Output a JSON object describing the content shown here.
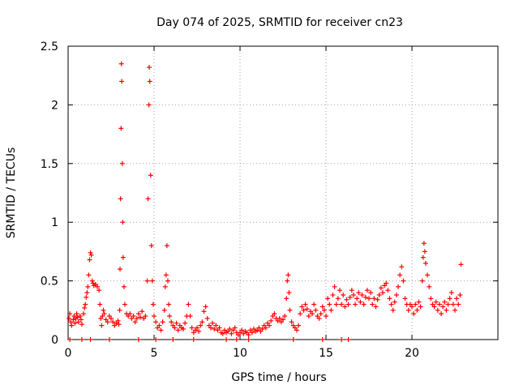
{
  "chart_data": {
    "type": "scatter",
    "title": "Day 074 of 2025, SRMTID for receiver cn23",
    "xlabel": "GPS time / hours",
    "ylabel": "SRMTID / TECUs",
    "xlim": [
      0,
      25
    ],
    "ylim": [
      0,
      2.5
    ],
    "xticks": [
      0,
      5,
      10,
      15,
      20
    ],
    "yticks": [
      0,
      0.5,
      1,
      1.5,
      2,
      2.5
    ],
    "xtick_labels": [
      "0",
      "5",
      "10",
      "15",
      "20"
    ],
    "ytick_labels": [
      "0",
      "0.5",
      "1",
      "1.5",
      "2",
      "2.5"
    ],
    "grid": true,
    "marker": "+",
    "color": "#ff0000",
    "series": [
      {
        "name": "SRMTID",
        "points": [
          [
            0.05,
            0.18
          ],
          [
            0.1,
            0.22
          ],
          [
            0.15,
            0.15
          ],
          [
            0.2,
            0.12
          ],
          [
            0.3,
            0.17
          ],
          [
            0.35,
            0.2
          ],
          [
            0.4,
            0.14
          ],
          [
            0.45,
            0.18
          ],
          [
            0.5,
            0.22
          ],
          [
            0.55,
            0.19
          ],
          [
            0.6,
            0.15
          ],
          [
            0.7,
            0.2
          ],
          [
            0.75,
            0.17
          ],
          [
            0.8,
            0.13
          ],
          [
            0.9,
            0.22
          ],
          [
            0.95,
            0.27
          ],
          [
            1.0,
            0.3
          ],
          [
            1.05,
            0.36
          ],
          [
            1.1,
            0.4
          ],
          [
            1.15,
            0.45
          ],
          [
            1.2,
            0.55
          ],
          [
            1.25,
            0.68
          ],
          [
            1.3,
            0.74
          ],
          [
            1.35,
            0.72
          ],
          [
            1.4,
            0.5
          ],
          [
            1.45,
            0.48
          ],
          [
            1.5,
            0.46
          ],
          [
            1.6,
            0.47
          ],
          [
            1.7,
            0.45
          ],
          [
            1.8,
            0.42
          ],
          [
            1.85,
            0.3
          ],
          [
            1.9,
            0.18
          ],
          [
            1.95,
            0.12
          ],
          [
            2.0,
            0.2
          ],
          [
            2.05,
            0.25
          ],
          [
            2.1,
            0.22
          ],
          [
            2.2,
            0.17
          ],
          [
            2.3,
            0.15
          ],
          [
            2.4,
            0.2
          ],
          [
            2.5,
            0.18
          ],
          [
            2.6,
            0.15
          ],
          [
            2.7,
            0.12
          ],
          [
            2.8,
            0.14
          ],
          [
            2.9,
            0.16
          ],
          [
            2.95,
            0.13
          ],
          [
            3.0,
            0.25
          ],
          [
            3.02,
            0.6
          ],
          [
            3.05,
            1.2
          ],
          [
            3.08,
            1.8
          ],
          [
            3.1,
            2.35
          ],
          [
            3.12,
            2.2
          ],
          [
            3.15,
            1.5
          ],
          [
            3.18,
            1.0
          ],
          [
            3.2,
            0.7
          ],
          [
            3.25,
            0.45
          ],
          [
            3.3,
            0.3
          ],
          [
            3.4,
            0.22
          ],
          [
            3.5,
            0.2
          ],
          [
            3.6,
            0.22
          ],
          [
            3.7,
            0.18
          ],
          [
            3.8,
            0.2
          ],
          [
            3.9,
            0.15
          ],
          [
            4.0,
            0.18
          ],
          [
            4.1,
            0.22
          ],
          [
            4.2,
            0.19
          ],
          [
            4.3,
            0.24
          ],
          [
            4.4,
            0.18
          ],
          [
            4.5,
            0.2
          ],
          [
            4.6,
            0.5
          ],
          [
            4.65,
            1.2
          ],
          [
            4.7,
            2.0
          ],
          [
            4.72,
            2.32
          ],
          [
            4.75,
            2.2
          ],
          [
            4.8,
            1.4
          ],
          [
            4.85,
            0.8
          ],
          [
            4.9,
            0.5
          ],
          [
            4.95,
            0.3
          ],
          [
            5.0,
            0.2
          ],
          [
            5.1,
            0.15
          ],
          [
            5.2,
            0.1
          ],
          [
            5.3,
            0.12
          ],
          [
            5.4,
            0.08
          ],
          [
            5.5,
            0.15
          ],
          [
            5.6,
            0.25
          ],
          [
            5.65,
            0.45
          ],
          [
            5.7,
            0.55
          ],
          [
            5.75,
            0.8
          ],
          [
            5.8,
            0.5
          ],
          [
            5.85,
            0.3
          ],
          [
            5.9,
            0.2
          ],
          [
            6.0,
            0.15
          ],
          [
            6.1,
            0.12
          ],
          [
            6.2,
            0.1
          ],
          [
            6.3,
            0.14
          ],
          [
            6.4,
            0.08
          ],
          [
            6.5,
            0.12
          ],
          [
            6.6,
            0.1
          ],
          [
            6.7,
            0.09
          ],
          [
            6.8,
            0.14
          ],
          [
            6.9,
            0.2
          ],
          [
            7.0,
            0.3
          ],
          [
            7.1,
            0.2
          ],
          [
            7.2,
            0.1
          ],
          [
            7.3,
            0.06
          ],
          [
            7.4,
            0.08
          ],
          [
            7.5,
            0.1
          ],
          [
            7.6,
            0.07
          ],
          [
            7.7,
            0.12
          ],
          [
            7.8,
            0.15
          ],
          [
            7.9,
            0.24
          ],
          [
            8.0,
            0.28
          ],
          [
            8.1,
            0.18
          ],
          [
            8.2,
            0.12
          ],
          [
            8.3,
            0.1
          ],
          [
            8.4,
            0.14
          ],
          [
            8.5,
            0.09
          ],
          [
            8.6,
            0.12
          ],
          [
            8.7,
            0.08
          ],
          [
            8.8,
            0.1
          ],
          [
            8.9,
            0.06
          ],
          [
            9.0,
            0.05
          ],
          [
            9.1,
            0.08
          ],
          [
            9.2,
            0.06
          ],
          [
            9.3,
            0.07
          ],
          [
            9.4,
            0.09
          ],
          [
            9.5,
            0.05
          ],
          [
            9.6,
            0.08
          ],
          [
            9.7,
            0.1
          ],
          [
            9.8,
            0.06
          ],
          [
            9.9,
            0.04
          ],
          [
            10.0,
            0.06
          ],
          [
            10.1,
            0.08
          ],
          [
            10.2,
            0.05
          ],
          [
            10.3,
            0.07
          ],
          [
            10.4,
            0.06
          ],
          [
            10.5,
            0.04
          ],
          [
            10.6,
            0.08
          ],
          [
            10.7,
            0.06
          ],
          [
            10.8,
            0.09
          ],
          [
            10.9,
            0.07
          ],
          [
            11.0,
            0.08
          ],
          [
            11.1,
            0.1
          ],
          [
            11.2,
            0.07
          ],
          [
            11.3,
            0.09
          ],
          [
            11.4,
            0.12
          ],
          [
            11.5,
            0.1
          ],
          [
            11.6,
            0.14
          ],
          [
            11.7,
            0.12
          ],
          [
            11.8,
            0.16
          ],
          [
            11.9,
            0.2
          ],
          [
            12.0,
            0.22
          ],
          [
            12.1,
            0.18
          ],
          [
            12.2,
            0.16
          ],
          [
            12.3,
            0.18
          ],
          [
            12.4,
            0.15
          ],
          [
            12.5,
            0.17
          ],
          [
            12.6,
            0.2
          ],
          [
            12.7,
            0.35
          ],
          [
            12.75,
            0.5
          ],
          [
            12.8,
            0.55
          ],
          [
            12.85,
            0.4
          ],
          [
            12.9,
            0.25
          ],
          [
            13.0,
            0.15
          ],
          [
            13.1,
            0.12
          ],
          [
            13.2,
            0.1
          ],
          [
            13.3,
            0.08
          ],
          [
            13.4,
            0.12
          ],
          [
            13.5,
            0.22
          ],
          [
            13.6,
            0.28
          ],
          [
            13.7,
            0.25
          ],
          [
            13.8,
            0.3
          ],
          [
            13.9,
            0.26
          ],
          [
            14.0,
            0.2
          ],
          [
            14.1,
            0.24
          ],
          [
            14.2,
            0.22
          ],
          [
            14.3,
            0.3
          ],
          [
            14.4,
            0.25
          ],
          [
            14.5,
            0.2
          ],
          [
            14.6,
            0.18
          ],
          [
            14.7,
            0.22
          ],
          [
            14.8,
            0.28
          ],
          [
            14.9,
            0.25
          ],
          [
            15.0,
            0.2
          ],
          [
            15.1,
            0.35
          ],
          [
            15.2,
            0.3
          ],
          [
            15.3,
            0.25
          ],
          [
            15.4,
            0.38
          ],
          [
            15.5,
            0.45
          ],
          [
            15.6,
            0.3
          ],
          [
            15.7,
            0.35
          ],
          [
            15.8,
            0.42
          ],
          [
            15.9,
            0.3
          ],
          [
            16.0,
            0.38
          ],
          [
            16.1,
            0.28
          ],
          [
            16.2,
            0.34
          ],
          [
            16.3,
            0.3
          ],
          [
            16.4,
            0.36
          ],
          [
            16.5,
            0.42
          ],
          [
            16.6,
            0.38
          ],
          [
            16.7,
            0.3
          ],
          [
            16.8,
            0.35
          ],
          [
            16.9,
            0.4
          ],
          [
            17.0,
            0.32
          ],
          [
            17.1,
            0.38
          ],
          [
            17.2,
            0.3
          ],
          [
            17.3,
            0.36
          ],
          [
            17.4,
            0.42
          ],
          [
            17.5,
            0.35
          ],
          [
            17.6,
            0.4
          ],
          [
            17.7,
            0.3
          ],
          [
            17.8,
            0.35
          ],
          [
            17.9,
            0.28
          ],
          [
            18.0,
            0.34
          ],
          [
            18.1,
            0.38
          ],
          [
            18.2,
            0.44
          ],
          [
            18.3,
            0.4
          ],
          [
            18.4,
            0.46
          ],
          [
            18.5,
            0.48
          ],
          [
            18.6,
            0.42
          ],
          [
            18.7,
            0.35
          ],
          [
            18.8,
            0.3
          ],
          [
            18.9,
            0.25
          ],
          [
            19.0,
            0.32
          ],
          [
            19.1,
            0.38
          ],
          [
            19.2,
            0.45
          ],
          [
            19.3,
            0.55
          ],
          [
            19.4,
            0.62
          ],
          [
            19.5,
            0.5
          ],
          [
            19.6,
            0.35
          ],
          [
            19.7,
            0.3
          ],
          [
            19.8,
            0.25
          ],
          [
            19.9,
            0.3
          ],
          [
            20.0,
            0.28
          ],
          [
            20.1,
            0.22
          ],
          [
            20.2,
            0.3
          ],
          [
            20.3,
            0.25
          ],
          [
            20.4,
            0.32
          ],
          [
            20.5,
            0.28
          ],
          [
            20.6,
            0.5
          ],
          [
            20.65,
            0.7
          ],
          [
            20.7,
            0.82
          ],
          [
            20.75,
            0.75
          ],
          [
            20.8,
            0.65
          ],
          [
            20.9,
            0.55
          ],
          [
            21.0,
            0.45
          ],
          [
            21.1,
            0.35
          ],
          [
            21.2,
            0.3
          ],
          [
            21.3,
            0.28
          ],
          [
            21.4,
            0.32
          ],
          [
            21.5,
            0.25
          ],
          [
            21.6,
            0.3
          ],
          [
            21.7,
            0.22
          ],
          [
            21.8,
            0.28
          ],
          [
            21.9,
            0.32
          ],
          [
            22.0,
            0.25
          ],
          [
            22.1,
            0.3
          ],
          [
            22.2,
            0.35
          ],
          [
            22.3,
            0.4
          ],
          [
            22.4,
            0.3
          ],
          [
            22.5,
            0.25
          ],
          [
            22.6,
            0.35
          ],
          [
            22.7,
            0.3
          ],
          [
            22.8,
            0.38
          ],
          [
            22.85,
            0.64
          ],
          [
            0.1,
            0.0
          ],
          [
            0.8,
            0.0
          ],
          [
            1.3,
            0.0
          ],
          [
            2.4,
            0.0
          ],
          [
            4.1,
            0.0
          ],
          [
            5.1,
            0.0
          ],
          [
            6.1,
            0.0
          ],
          [
            7.3,
            0.0
          ],
          [
            9.2,
            0.0
          ],
          [
            9.8,
            0.0
          ],
          [
            10.5,
            0.0
          ],
          [
            13.1,
            0.0
          ],
          [
            14.8,
            0.0
          ],
          [
            15.9,
            0.0
          ],
          [
            16.3,
            0.0
          ]
        ]
      }
    ]
  }
}
